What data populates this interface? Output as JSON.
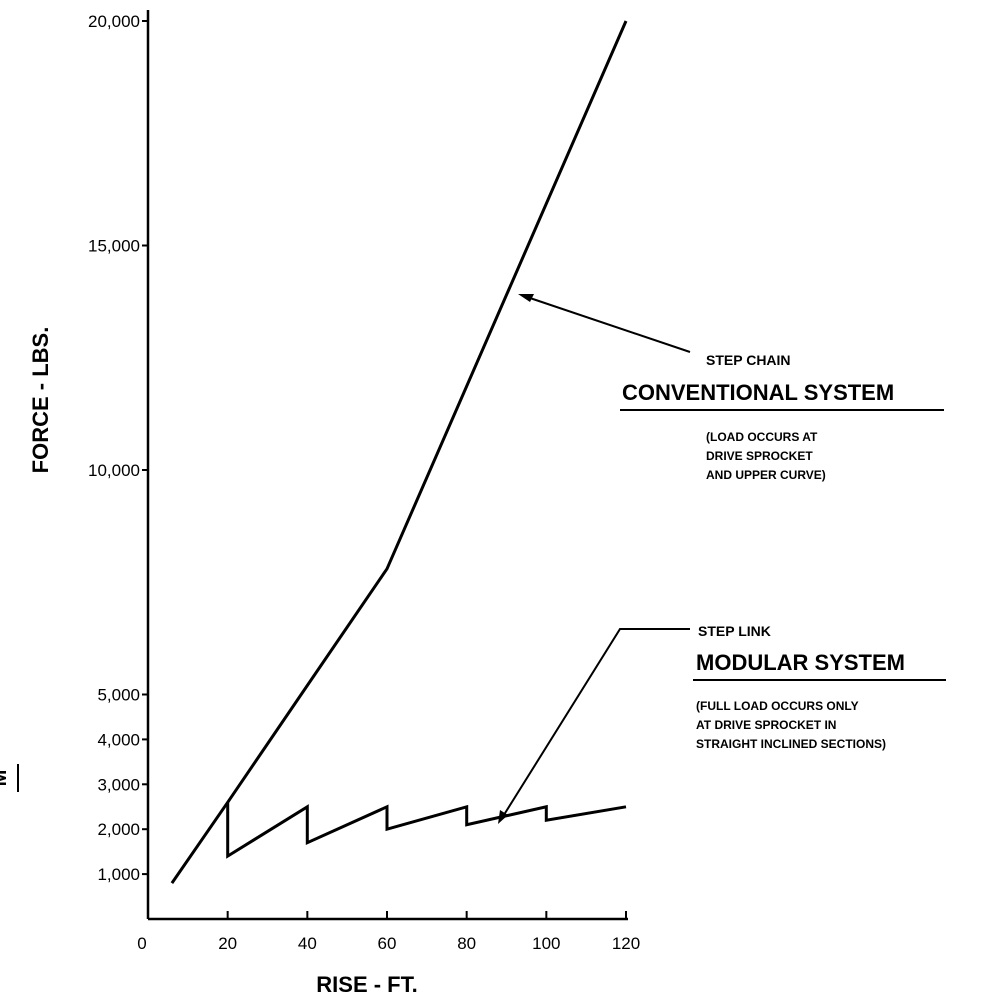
{
  "chart_data": {
    "type": "line",
    "xlabel": "RISE - FT.",
    "ylabel": "FORCE - LBS.",
    "xlim": [
      0,
      120
    ],
    "ylim": [
      0,
      20000
    ],
    "x_scale": "linear",
    "y_scale": "linear",
    "grid": false,
    "x_ticks": [
      0,
      20,
      40,
      60,
      80,
      100,
      120
    ],
    "x_tick_labels": [
      "0",
      "20",
      "40",
      "60",
      "80",
      "100",
      "120"
    ],
    "y_ticks": [
      1000,
      2000,
      3000,
      4000,
      5000,
      10000,
      15000,
      20000
    ],
    "y_tick_labels": [
      "1,000",
      "2,000",
      "3,000",
      "4,000",
      "5,000",
      "10,000",
      "15,000",
      "20,000"
    ],
    "series": [
      {
        "x": [
          6,
          20,
          40,
          60,
          120
        ],
        "y": [
          800,
          2600,
          5200,
          7800,
          20000
        ]
      },
      {
        "x": [
          20,
          20,
          40,
          40,
          60,
          60,
          80,
          80,
          100,
          100,
          120
        ],
        "y": [
          2600,
          1400,
          2500,
          1700,
          2500,
          2000,
          2500,
          2100,
          2500,
          2200,
          2500
        ]
      }
    ],
    "annotations": [
      {
        "series_index": 0,
        "line1": "STEP CHAIN",
        "line2": "CONVENTIONAL SYSTEM",
        "notes": [
          "(LOAD OCCURS AT",
          "DRIVE SPROCKET",
          "AND UPPER CURVE)"
        ]
      },
      {
        "series_index": 1,
        "line1": "STEP LINK",
        "line2": "MODULAR SYSTEM",
        "notes": [
          "(FULL LOAD OCCURS ONLY",
          "AT DRIVE SPROCKET IN",
          "STRAIGHT INCLINED SECTIONS)"
        ]
      }
    ],
    "stray_text": "M",
    "colors": {
      "line": "#000000",
      "background": "#ffffff"
    }
  }
}
